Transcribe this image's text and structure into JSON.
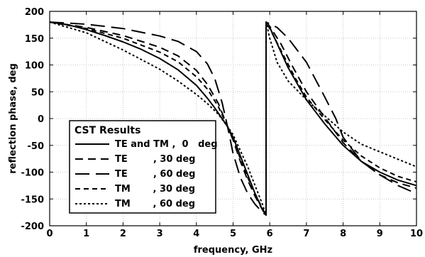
{
  "chart_data": {
    "type": "line",
    "xlabel": "frequency, GHz",
    "ylabel": "reflection phase, deg",
    "xlim": [
      0,
      10
    ],
    "ylim": [
      -200,
      200
    ],
    "x_ticks": [
      0,
      1,
      2,
      3,
      4,
      5,
      6,
      7,
      8,
      9,
      10
    ],
    "y_ticks": [
      -200,
      -150,
      -100,
      -50,
      0,
      50,
      100,
      150,
      200
    ],
    "grid": true,
    "legend": {
      "title": "CST Results",
      "placement": "lower-left"
    },
    "series": [
      {
        "name": "TE and TM , 0 deg",
        "legend_text": "TE and TM ,  0   deg",
        "dash": "solid",
        "x": [
          0,
          0.5,
          1,
          1.5,
          2,
          2.5,
          3,
          3.5,
          4,
          4.3,
          4.5,
          4.7,
          4.85,
          5,
          5.2,
          5.4,
          5.6,
          5.8,
          5.9,
          5.9,
          6,
          6.2,
          6.5,
          7,
          7.5,
          8,
          8.5,
          9,
          9.5,
          10
        ],
        "y": [
          180,
          175,
          166,
          155,
          143,
          129,
          112,
          91,
          62,
          38,
          20,
          0,
          -15,
          -35,
          -70,
          -105,
          -140,
          -170,
          -180,
          180,
          170,
          140,
          95,
          35,
          -10,
          -50,
          -80,
          -100,
          -115,
          -125
        ]
      },
      {
        "name": "TE , 30 deg",
        "legend_text": "TE        , 30 deg",
        "dash": "dash",
        "x": [
          0,
          1,
          2,
          3,
          3.5,
          4,
          4.3,
          4.6,
          4.85,
          5,
          5.2,
          5.4,
          5.6,
          5.8,
          5.9,
          5.9,
          6,
          6.3,
          6.6,
          7,
          7.5,
          8,
          8.5,
          9,
          9.5,
          10
        ],
        "y": [
          180,
          170,
          155,
          133,
          117,
          90,
          64,
          28,
          -15,
          -40,
          -80,
          -115,
          -145,
          -170,
          -180,
          180,
          172,
          140,
          100,
          50,
          2,
          -45,
          -80,
          -105,
          -120,
          -130
        ]
      },
      {
        "name": "TE , 60 deg",
        "legend_text": "TE        , 60 deg",
        "dash": "longdash",
        "x": [
          0,
          1,
          2,
          3,
          3.5,
          4,
          4.3,
          4.5,
          4.7,
          4.85,
          5,
          5.2,
          5.4,
          5.6,
          5.8,
          5.9,
          5.9,
          6.2,
          6.5,
          7,
          7.5,
          7.8,
          8,
          8.5,
          9,
          9.5,
          10
        ],
        "y": [
          180,
          176,
          168,
          154,
          144,
          125,
          102,
          75,
          30,
          -15,
          -65,
          -110,
          -140,
          -160,
          -175,
          -180,
          180,
          170,
          150,
          105,
          40,
          0,
          -35,
          -80,
          -105,
          -125,
          -140
        ]
      },
      {
        "name": "TM , 30 deg",
        "legend_text": "TM       , 30 deg",
        "dash": "shortdash",
        "x": [
          0,
          1,
          2,
          3,
          3.5,
          4,
          4.3,
          4.6,
          4.85,
          5,
          5.2,
          5.4,
          5.6,
          5.8,
          5.9,
          5.9,
          6,
          6.3,
          6.7,
          7,
          7.5,
          8,
          8.5,
          9,
          9.5,
          10
        ],
        "y": [
          180,
          168,
          150,
          124,
          106,
          78,
          55,
          22,
          -15,
          -38,
          -75,
          -110,
          -140,
          -168,
          -180,
          180,
          168,
          128,
          75,
          40,
          -2,
          -40,
          -70,
          -92,
          -108,
          -118
        ]
      },
      {
        "name": "TM , 60 deg",
        "legend_text": "TM       , 60 deg",
        "dash": "dot",
        "x": [
          0,
          1,
          2,
          3,
          3.5,
          4,
          4.3,
          4.6,
          4.85,
          5,
          5.2,
          5.4,
          5.6,
          5.8,
          5.9,
          5.9,
          6,
          6.2,
          6.5,
          7,
          7.5,
          8,
          8.5,
          9,
          9.5,
          10
        ],
        "y": [
          180,
          160,
          128,
          92,
          70,
          45,
          28,
          8,
          -15,
          -30,
          -60,
          -90,
          -125,
          -160,
          -180,
          180,
          150,
          105,
          70,
          35,
          5,
          -25,
          -48,
          -62,
          -76,
          -90
        ]
      }
    ]
  }
}
